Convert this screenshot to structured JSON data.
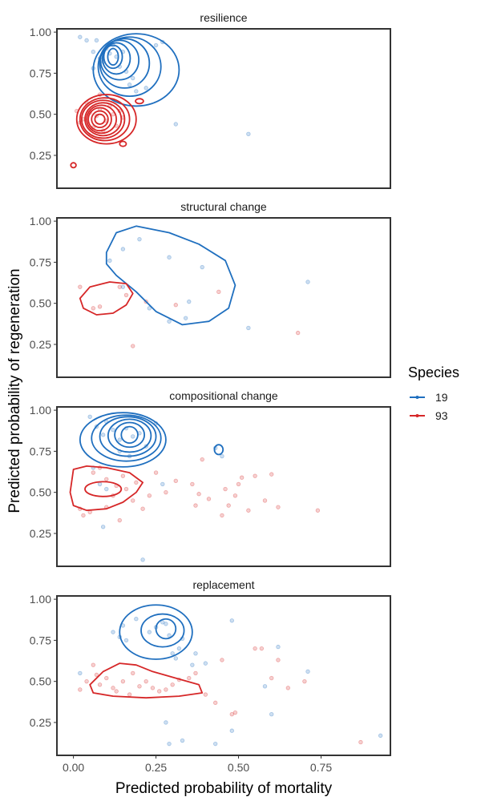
{
  "chart_data": {
    "type": "scatter",
    "xlabel": "Predicted probability of mortality",
    "ylabel": "Predicted probability of regeneration",
    "xlim": [
      -0.05,
      0.96
    ],
    "ylim": [
      0.05,
      1.02
    ],
    "x_ticks": [
      0.0,
      0.25,
      0.5,
      0.75
    ],
    "x_tick_labels": [
      "0.00",
      "0.25",
      "0.50",
      "0.75"
    ],
    "y_ticks": [
      0.25,
      0.5,
      0.75,
      1.0
    ],
    "y_tick_labels": [
      "0.25",
      "0.50",
      "0.75",
      "1.00"
    ],
    "grid": false,
    "legend": {
      "title": "Species",
      "position": "right",
      "entries": [
        {
          "label": "19",
          "color": "#1f6fbf"
        },
        {
          "label": "93",
          "color": "#d62728"
        }
      ]
    },
    "colors": {
      "19": "#1f6fbf",
      "93": "#d62728"
    },
    "panels": [
      {
        "title": "resilience",
        "series": [
          {
            "name": "19",
            "points": [
              [
                0.02,
                0.97
              ],
              [
                0.04,
                0.95
              ],
              [
                0.06,
                0.88
              ],
              [
                0.08,
                0.84
              ],
              [
                0.09,
                0.82
              ],
              [
                0.1,
                0.9
              ],
              [
                0.12,
                0.92
              ],
              [
                0.13,
                0.85
              ],
              [
                0.14,
                0.79
              ],
              [
                0.15,
                0.88
              ],
              [
                0.16,
                0.76
              ],
              [
                0.17,
                0.68
              ],
              [
                0.18,
                0.72
              ],
              [
                0.19,
                0.64
              ],
              [
                0.22,
                0.66
              ],
              [
                0.25,
                0.92
              ],
              [
                0.27,
                0.94
              ],
              [
                0.31,
                0.44
              ],
              [
                0.53,
                0.38
              ],
              [
                0.07,
                0.95
              ],
              [
                0.11,
                0.87
              ],
              [
                0.06,
                0.78
              ]
            ]
          },
          {
            "name": "93",
            "points": [
              [
                0.01,
                0.52
              ],
              [
                0.02,
                0.45
              ],
              [
                0.03,
                0.47
              ],
              [
                0.05,
                0.51
              ],
              [
                0.06,
                0.42
              ],
              [
                0.07,
                0.49
              ],
              [
                0.08,
                0.53
              ],
              [
                0.09,
                0.4
              ],
              [
                0.1,
                0.46
              ],
              [
                0.11,
                0.55
              ],
              [
                0.12,
                0.5
              ],
              [
                0.13,
                0.43
              ],
              [
                0.15,
                0.48
              ],
              [
                0.04,
                0.57
              ],
              [
                0.08,
                0.62
              ],
              [
                0.14,
                0.52
              ]
            ]
          }
        ],
        "contours": [
          {
            "series": "19",
            "cx": 0.12,
            "cy": 0.85,
            "rx": [
              0.016,
              0.028,
              0.042,
              0.058,
              0.075,
              0.095,
              0.13
            ],
            "ry": [
              0.05,
              0.07,
              0.095,
              0.12,
              0.15,
              0.18,
              0.22
            ],
            "dx": [
              0,
              0,
              0.01,
              0.02,
              0.035,
              0.05,
              0.07
            ],
            "dy": [
              0,
              0,
              -0.01,
              -0.02,
              -0.04,
              -0.06,
              -0.08
            ]
          },
          {
            "series": "93",
            "cx": 0.08,
            "cy": 0.47,
            "rx": [
              0.015,
              0.025,
              0.035,
              0.045,
              0.055,
              0.065,
              0.075,
              0.09
            ],
            "ry": [
              0.03,
              0.05,
              0.07,
              0.085,
              0.1,
              0.115,
              0.13,
              0.15
            ],
            "dx": [
              0,
              0,
              0,
              0.005,
              0.01,
              0.01,
              0.015,
              0.02
            ],
            "dy": [
              0,
              0,
              0,
              0,
              0,
              0,
              0,
              0
            ]
          },
          {
            "series": "93",
            "cx": 0.2,
            "cy": 0.58,
            "rx": [
              0.012
            ],
            "ry": [
              0.015
            ],
            "dx": [
              0
            ],
            "dy": [
              0
            ]
          },
          {
            "series": "93",
            "cx": 0.15,
            "cy": 0.32,
            "rx": [
              0.01
            ],
            "ry": [
              0.015
            ],
            "dx": [
              0
            ],
            "dy": [
              0
            ]
          },
          {
            "series": "93",
            "cx": 0.0,
            "cy": 0.19,
            "rx": [
              0.008
            ],
            "ry": [
              0.015
            ],
            "dx": [
              0
            ],
            "dy": [
              0
            ]
          }
        ]
      },
      {
        "title": "structural change",
        "series": [
          {
            "name": "19",
            "points": [
              [
                0.11,
                0.76
              ],
              [
                0.15,
                0.83
              ],
              [
                0.2,
                0.89
              ],
              [
                0.29,
                0.78
              ],
              [
                0.39,
                0.72
              ],
              [
                0.15,
                0.6
              ],
              [
                0.29,
                0.39
              ],
              [
                0.34,
                0.41
              ],
              [
                0.53,
                0.35
              ],
              [
                0.71,
                0.63
              ],
              [
                0.23,
                0.47
              ],
              [
                0.35,
                0.51
              ]
            ]
          },
          {
            "name": "93",
            "points": [
              [
                0.02,
                0.6
              ],
              [
                0.06,
                0.47
              ],
              [
                0.08,
                0.48
              ],
              [
                0.14,
                0.6
              ],
              [
                0.16,
                0.55
              ],
              [
                0.18,
                0.24
              ],
              [
                0.31,
                0.49
              ],
              [
                0.44,
                0.57
              ],
              [
                0.68,
                0.32
              ],
              [
                0.22,
                0.51
              ]
            ]
          }
        ],
        "contours": []
      },
      {
        "title": "compositional change",
        "series": [
          {
            "name": "19",
            "points": [
              [
                0.05,
                0.96
              ],
              [
                0.07,
                0.9
              ],
              [
                0.09,
                0.85
              ],
              [
                0.1,
                0.93
              ],
              [
                0.12,
                0.88
              ],
              [
                0.14,
                0.82
              ],
              [
                0.16,
                0.89
              ],
              [
                0.18,
                0.84
              ],
              [
                0.2,
                0.86
              ],
              [
                0.22,
                0.78
              ],
              [
                0.25,
                0.92
              ],
              [
                0.14,
                0.75
              ],
              [
                0.06,
                0.65
              ],
              [
                0.08,
                0.55
              ],
              [
                0.1,
                0.52
              ],
              [
                0.09,
                0.29
              ],
              [
                0.21,
                0.09
              ],
              [
                0.43,
                0.77
              ],
              [
                0.45,
                0.72
              ],
              [
                0.27,
                0.55
              ],
              [
                0.17,
                0.72
              ]
            ]
          },
          {
            "name": "93",
            "points": [
              [
                0.02,
                0.4
              ],
              [
                0.03,
                0.36
              ],
              [
                0.05,
                0.38
              ],
              [
                0.06,
                0.62
              ],
              [
                0.08,
                0.65
              ],
              [
                0.1,
                0.58
              ],
              [
                0.12,
                0.48
              ],
              [
                0.13,
                0.54
              ],
              [
                0.15,
                0.6
              ],
              [
                0.16,
                0.52
              ],
              [
                0.18,
                0.45
              ],
              [
                0.19,
                0.56
              ],
              [
                0.21,
                0.4
              ],
              [
                0.23,
                0.48
              ],
              [
                0.25,
                0.62
              ],
              [
                0.28,
                0.5
              ],
              [
                0.31,
                0.57
              ],
              [
                0.36,
                0.55
              ],
              [
                0.37,
                0.42
              ],
              [
                0.38,
                0.49
              ],
              [
                0.39,
                0.7
              ],
              [
                0.41,
                0.46
              ],
              [
                0.45,
                0.36
              ],
              [
                0.46,
                0.52
              ],
              [
                0.47,
                0.42
              ],
              [
                0.49,
                0.48
              ],
              [
                0.5,
                0.55
              ],
              [
                0.51,
                0.59
              ],
              [
                0.53,
                0.39
              ],
              [
                0.55,
                0.6
              ],
              [
                0.58,
                0.45
              ],
              [
                0.6,
                0.61
              ],
              [
                0.62,
                0.41
              ],
              [
                0.74,
                0.39
              ],
              [
                0.14,
                0.33
              ],
              [
                0.1,
                0.41
              ]
            ]
          }
        ],
        "contours": [
          {
            "series": "19",
            "cx": 0.17,
            "cy": 0.85,
            "rx": [
              0.025,
              0.045,
              0.065,
              0.085,
              0.105,
              0.13
            ],
            "ry": [
              0.05,
              0.075,
              0.1,
              0.12,
              0.14,
              0.165
            ],
            "dx": [
              0,
              0,
              0,
              -0.005,
              -0.01,
              -0.02
            ],
            "dy": [
              0,
              0,
              -0.005,
              -0.01,
              -0.02,
              -0.03
            ]
          },
          {
            "series": "19",
            "cx": 0.44,
            "cy": 0.76,
            "rx": [
              0.013
            ],
            "ry": [
              0.03
            ],
            "dx": [
              0
            ],
            "dy": [
              0
            ]
          },
          {
            "series": "93",
            "cx": 0.09,
            "cy": 0.52,
            "rx": [
              0.055
            ],
            "ry": [
              0.045
            ],
            "dx": [
              0
            ],
            "dy": [
              0
            ]
          }
        ]
      },
      {
        "title": "replacement",
        "series": [
          {
            "name": "19",
            "points": [
              [
                0.12,
                0.8
              ],
              [
                0.14,
                0.77
              ],
              [
                0.15,
                0.84
              ],
              [
                0.16,
                0.75
              ],
              [
                0.19,
                0.88
              ],
              [
                0.23,
                0.8
              ],
              [
                0.25,
                0.83
              ],
              [
                0.27,
                0.86
              ],
              [
                0.28,
                0.85
              ],
              [
                0.29,
                0.78
              ],
              [
                0.3,
                0.67
              ],
              [
                0.31,
                0.64
              ],
              [
                0.32,
                0.7
              ],
              [
                0.33,
                0.76
              ],
              [
                0.36,
                0.6
              ],
              [
                0.37,
                0.67
              ],
              [
                0.4,
                0.61
              ],
              [
                0.48,
                0.87
              ],
              [
                0.58,
                0.47
              ],
              [
                0.6,
                0.3
              ],
              [
                0.62,
                0.71
              ],
              [
                0.71,
                0.56
              ],
              [
                0.93,
                0.17
              ],
              [
                0.28,
                0.25
              ],
              [
                0.33,
                0.14
              ],
              [
                0.43,
                0.12
              ],
              [
                0.48,
                0.2
              ],
              [
                0.29,
                0.12
              ],
              [
                0.02,
                0.55
              ]
            ]
          },
          {
            "name": "93",
            "points": [
              [
                0.02,
                0.45
              ],
              [
                0.04,
                0.5
              ],
              [
                0.06,
                0.6
              ],
              [
                0.08,
                0.48
              ],
              [
                0.1,
                0.52
              ],
              [
                0.12,
                0.46
              ],
              [
                0.13,
                0.44
              ],
              [
                0.15,
                0.5
              ],
              [
                0.17,
                0.42
              ],
              [
                0.18,
                0.55
              ],
              [
                0.2,
                0.47
              ],
              [
                0.22,
                0.5
              ],
              [
                0.24,
                0.46
              ],
              [
                0.26,
                0.44
              ],
              [
                0.28,
                0.45
              ],
              [
                0.3,
                0.48
              ],
              [
                0.32,
                0.51
              ],
              [
                0.35,
                0.52
              ],
              [
                0.37,
                0.55
              ],
              [
                0.4,
                0.42
              ],
              [
                0.43,
                0.37
              ],
              [
                0.45,
                0.63
              ],
              [
                0.48,
                0.3
              ],
              [
                0.49,
                0.31
              ],
              [
                0.55,
                0.7
              ],
              [
                0.57,
                0.7
              ],
              [
                0.6,
                0.52
              ],
              [
                0.62,
                0.63
              ],
              [
                0.65,
                0.46
              ],
              [
                0.7,
                0.5
              ],
              [
                0.87,
                0.13
              ],
              [
                0.07,
                0.54
              ]
            ]
          }
        ],
        "contours": [
          {
            "series": "19",
            "cx": 0.28,
            "cy": 0.82,
            "rx": [
              0.03,
              0.065,
              0.11
            ],
            "ry": [
              0.06,
              0.1,
              0.165
            ],
            "dx": [
              0,
              -0.01,
              -0.03
            ],
            "dy": [
              0,
              -0.01,
              -0.02
            ]
          }
        ]
      }
    ]
  }
}
